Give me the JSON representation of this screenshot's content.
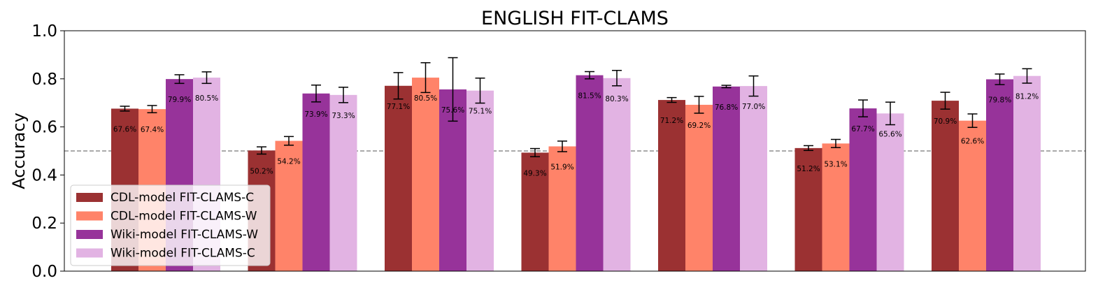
{
  "chart_data": {
    "type": "bar",
    "title": "ENGLISH FIT-CLAMS",
    "xlabel": "",
    "ylabel": "Accuracy",
    "ylim": [
      0,
      1.0
    ],
    "yticks": [
      0.0,
      0.2,
      0.4,
      0.6,
      0.8,
      1.0
    ],
    "ytick_labels": [
      "0.0",
      "0.2",
      "0.4",
      "0.6",
      "0.8",
      "1.0"
    ],
    "reference_line": 0.5,
    "grid": false,
    "legend_position": "lower-left",
    "group_count": 7,
    "series": [
      {
        "name": "CDL-model FIT-CLAMS-C",
        "color": "#9b3132",
        "values": [
          0.676,
          0.502,
          0.771,
          0.493,
          0.712,
          0.512,
          0.709
        ],
        "errors": [
          0.01,
          0.015,
          0.055,
          0.017,
          0.01,
          0.01,
          0.035
        ],
        "labels": [
          "67.6%",
          "50.2%",
          "77.1%",
          "49.3%",
          "71.2%",
          "51.2%",
          "70.9%"
        ]
      },
      {
        "name": "CDL-model FIT-CLAMS-W",
        "color": "#ff8369",
        "values": [
          0.674,
          0.542,
          0.805,
          0.519,
          0.692,
          0.531,
          0.626
        ],
        "errors": [
          0.015,
          0.018,
          0.062,
          0.022,
          0.035,
          0.017,
          0.028
        ],
        "labels": [
          "67.4%",
          "54.2%",
          "80.5%",
          "51.9%",
          "69.2%",
          "53.1%",
          "62.6%"
        ]
      },
      {
        "name": "Wiki-model FIT-CLAMS-W",
        "color": "#97339a",
        "values": [
          0.799,
          0.739,
          0.756,
          0.815,
          0.768,
          0.677,
          0.798
        ],
        "errors": [
          0.018,
          0.035,
          0.132,
          0.015,
          0.005,
          0.035,
          0.022
        ],
        "labels": [
          "79.9%",
          "73.9%",
          "75.6%",
          "81.5%",
          "76.8%",
          "67.7%",
          "79.8%"
        ]
      },
      {
        "name": "Wiki-model FIT-CLAMS-C",
        "color": "#e2b3e3",
        "values": [
          0.805,
          0.733,
          0.751,
          0.803,
          0.77,
          0.656,
          0.812
        ],
        "errors": [
          0.024,
          0.032,
          0.052,
          0.032,
          0.042,
          0.047,
          0.03
        ],
        "labels": [
          "80.5%",
          "73.3%",
          "75.1%",
          "80.3%",
          "77.0%",
          "65.6%",
          "81.2%"
        ]
      }
    ]
  }
}
